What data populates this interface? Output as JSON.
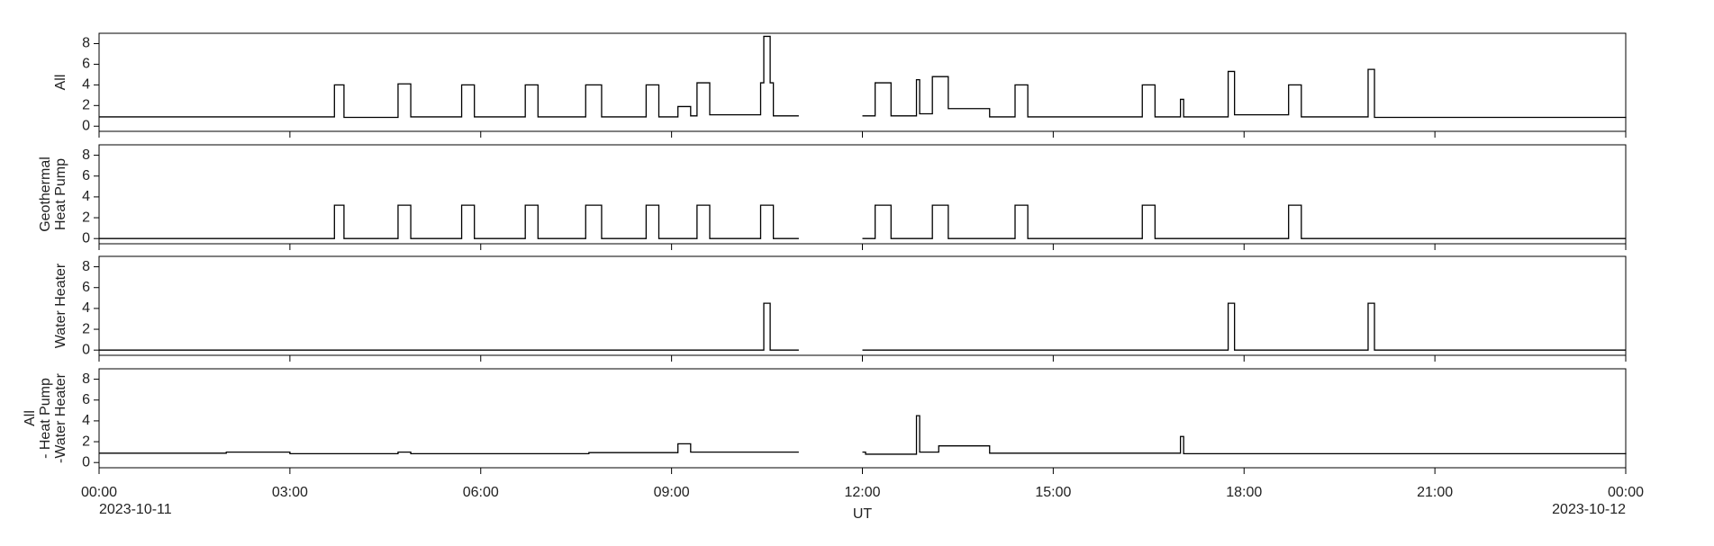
{
  "chart_data": [
    {
      "type": "line",
      "ylabel": [
        "All"
      ],
      "xlim": [
        0,
        24
      ],
      "ylim": [
        -0.5,
        9
      ],
      "yticks": [
        0,
        2,
        4,
        6,
        8
      ],
      "xticks": [
        0,
        3,
        6,
        9,
        12,
        15,
        18,
        21,
        24
      ],
      "color": "#000000",
      "x": [
        0,
        3.7,
        3.85,
        4.7,
        4.9,
        5.7,
        5.9,
        6.7,
        6.9,
        7.65,
        7.9,
        8.6,
        8.8,
        9.1,
        9.3,
        9.4,
        9.6,
        10.4,
        10.45,
        10.55,
        10.6,
        11,
        12,
        12.2,
        12.45,
        12.85,
        12.9,
        13.1,
        13.35,
        14,
        14.4,
        14.6,
        16.4,
        16.6,
        17,
        17.05,
        17.75,
        17.85,
        18.7,
        18.9,
        19.95,
        20.05,
        24
      ],
      "values": [
        0.9,
        4.0,
        0.85,
        4.1,
        0.9,
        4.0,
        0.9,
        4.0,
        0.9,
        4.0,
        0.9,
        4.0,
        0.9,
        1.9,
        1.0,
        4.2,
        1.1,
        4.2,
        8.7,
        4.2,
        1.0,
        null,
        1.0,
        4.2,
        1.0,
        4.5,
        1.2,
        4.8,
        1.7,
        0.9,
        4.0,
        0.9,
        4.0,
        0.9,
        2.6,
        0.9,
        5.3,
        1.1,
        4.0,
        0.9,
        5.5,
        0.85,
        0.8
      ]
    },
    {
      "type": "line",
      "ylabel": [
        "Geothermal",
        "Heat Pump"
      ],
      "xlim": [
        0,
        24
      ],
      "ylim": [
        -0.5,
        9
      ],
      "yticks": [
        0,
        2,
        4,
        6,
        8
      ],
      "xticks": [
        0,
        3,
        6,
        9,
        12,
        15,
        18,
        21,
        24
      ],
      "color": "#000000",
      "x": [
        0,
        3.7,
        3.85,
        4.7,
        4.9,
        5.7,
        5.9,
        6.7,
        6.9,
        7.65,
        7.9,
        8.6,
        8.8,
        9.4,
        9.6,
        10.4,
        10.6,
        11,
        12,
        12.2,
        12.45,
        13.1,
        13.35,
        14.4,
        14.6,
        16.4,
        16.6,
        18.7,
        18.9,
        24
      ],
      "values": [
        0,
        3.2,
        0,
        3.2,
        0,
        3.2,
        0,
        3.2,
        0,
        3.2,
        0,
        3.2,
        0,
        3.2,
        0,
        3.2,
        0,
        null,
        0,
        3.2,
        0,
        3.2,
        0,
        3.2,
        0,
        3.2,
        0,
        3.2,
        0,
        0
      ]
    },
    {
      "type": "line",
      "ylabel": [
        "Water Heater"
      ],
      "xlim": [
        0,
        24
      ],
      "ylim": [
        -0.5,
        9
      ],
      "yticks": [
        0,
        2,
        4,
        6,
        8
      ],
      "xticks": [
        0,
        3,
        6,
        9,
        12,
        15,
        18,
        21,
        24
      ],
      "color": "#000000",
      "x": [
        0,
        10.45,
        10.55,
        11,
        12,
        17.75,
        17.85,
        19.95,
        20.05,
        24
      ],
      "values": [
        0,
        4.5,
        0,
        null,
        0,
        4.5,
        0,
        4.5,
        0,
        0
      ]
    },
    {
      "type": "line",
      "ylabel": [
        "All",
        "- Heat Pump",
        "-Water Heater"
      ],
      "xlabel": "UT",
      "xlim": [
        0,
        24
      ],
      "ylim": [
        -0.5,
        9
      ],
      "yticks": [
        0,
        2,
        4,
        6,
        8
      ],
      "color": "#000000",
      "xticks": [
        {
          "value": 0,
          "label": "00:00"
        },
        {
          "value": 3,
          "label": "03:00"
        },
        {
          "value": 6,
          "label": "06:00"
        },
        {
          "value": 9,
          "label": "09:00"
        },
        {
          "value": 12,
          "label": "12:00"
        },
        {
          "value": 15,
          "label": "15:00"
        },
        {
          "value": 18,
          "label": "18:00"
        },
        {
          "value": 21,
          "label": "21:00"
        },
        {
          "value": 24,
          "label": "00:00"
        }
      ],
      "date_labels": [
        {
          "value": 0,
          "label": "2023-10-11"
        },
        {
          "value": 24,
          "label": "2023-10-12"
        }
      ],
      "x": [
        0,
        2,
        3,
        4.7,
        4.9,
        7.7,
        9.1,
        9.3,
        11,
        12,
        12.05,
        12.85,
        12.9,
        13.2,
        14,
        17,
        17.05,
        24
      ],
      "values": [
        0.9,
        1.0,
        0.85,
        1.0,
        0.85,
        0.95,
        1.8,
        1.0,
        null,
        1.0,
        0.8,
        4.5,
        1.0,
        1.6,
        0.9,
        2.5,
        0.85,
        0.8
      ]
    }
  ]
}
